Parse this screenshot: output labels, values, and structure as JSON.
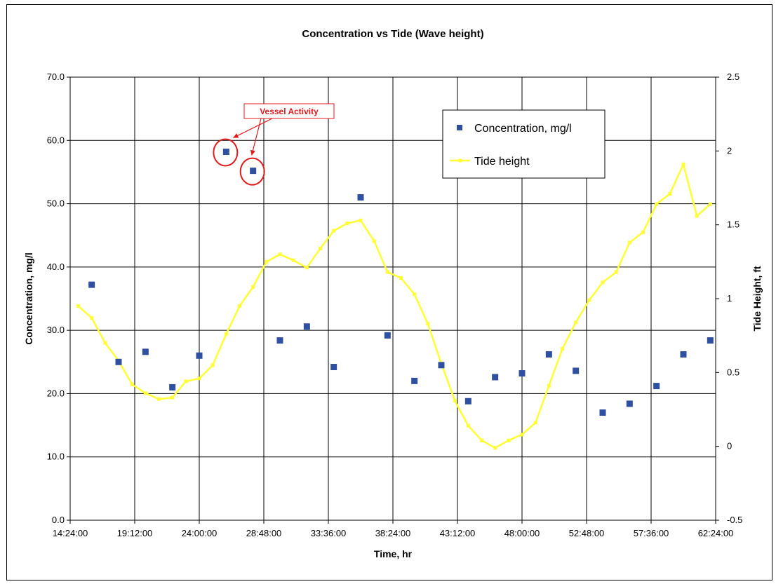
{
  "chart_data": {
    "type": "scatter",
    "title": "Concentration vs Tide (Wave height)",
    "xlabel": "Time, hr",
    "ylabel": "Concentration, mg/l",
    "y2label": "Tide Height, ft",
    "x_ticks": [
      "14:24:00",
      "19:12:00",
      "24:00:00",
      "28:48:00",
      "33:36:00",
      "38:24:00",
      "43:12:00",
      "48:00:00",
      "52:48:00",
      "57:36:00",
      "62:24:00"
    ],
    "xlim_hours": [
      14.4,
      62.4
    ],
    "y_ticks": [
      "0.0",
      "10.0",
      "20.0",
      "30.0",
      "40.0",
      "50.0",
      "60.0",
      "70.0"
    ],
    "ylim": [
      0,
      70
    ],
    "y2_ticks": [
      "-0.5",
      "0",
      "0.5",
      "1",
      "1.5",
      "2",
      "2.5"
    ],
    "y2lim": [
      -0.5,
      2.5
    ],
    "grid": true,
    "legend_position": "top-right",
    "series": [
      {
        "name": "Concentration, mg/l",
        "axis": "left",
        "style": "markers",
        "color": "#2f4fa0",
        "x_hours": [
          16.0,
          18.0,
          20.0,
          22.0,
          24.0,
          26.0,
          28.0,
          30.0,
          32.0,
          34.0,
          36.0,
          38.0,
          40.0,
          42.0,
          44.0,
          46.0,
          48.0,
          50.0,
          52.0,
          54.0,
          56.0,
          58.0,
          60.0,
          62.0
        ],
        "values": [
          37.2,
          25.0,
          26.6,
          21.0,
          26.0,
          58.2,
          55.2,
          28.4,
          30.6,
          24.2,
          51.0,
          29.2,
          22.0,
          24.5,
          18.8,
          22.6,
          23.2,
          26.2,
          23.6,
          17.0,
          18.4,
          21.2,
          26.2,
          28.4
        ]
      },
      {
        "name": "Tide height",
        "axis": "right",
        "style": "line",
        "color": "#ffff33",
        "x_hours": [
          15.0,
          16.0,
          17.0,
          18.0,
          19.0,
          20.0,
          21.0,
          22.0,
          23.0,
          24.0,
          25.0,
          26.0,
          27.0,
          28.0,
          29.0,
          30.0,
          31.0,
          32.0,
          33.0,
          34.0,
          35.0,
          36.0,
          37.0,
          38.0,
          39.0,
          40.0,
          41.0,
          42.0,
          43.0,
          44.0,
          45.0,
          46.0,
          47.0,
          48.0,
          49.0,
          50.0,
          51.0,
          52.0,
          53.0,
          54.0,
          55.0,
          56.0,
          57.0,
          58.0,
          59.0,
          60.0,
          61.0,
          62.0
        ],
        "values": [
          0.95,
          0.87,
          0.7,
          0.58,
          0.42,
          0.36,
          0.32,
          0.33,
          0.44,
          0.46,
          0.55,
          0.76,
          0.95,
          1.08,
          1.25,
          1.3,
          1.26,
          1.21,
          1.34,
          1.46,
          1.51,
          1.53,
          1.39,
          1.18,
          1.14,
          1.03,
          0.83,
          0.56,
          0.31,
          0.14,
          0.04,
          -0.01,
          0.04,
          0.08,
          0.16,
          0.41,
          0.66,
          0.84,
          0.99,
          1.11,
          1.18,
          1.38,
          1.45,
          1.64,
          1.71,
          1.91,
          1.56,
          1.64
        ]
      }
    ],
    "annotations": [
      {
        "text": "Vessel Activity",
        "color": "#e31a1c",
        "points": [
          5,
          6
        ]
      }
    ]
  }
}
